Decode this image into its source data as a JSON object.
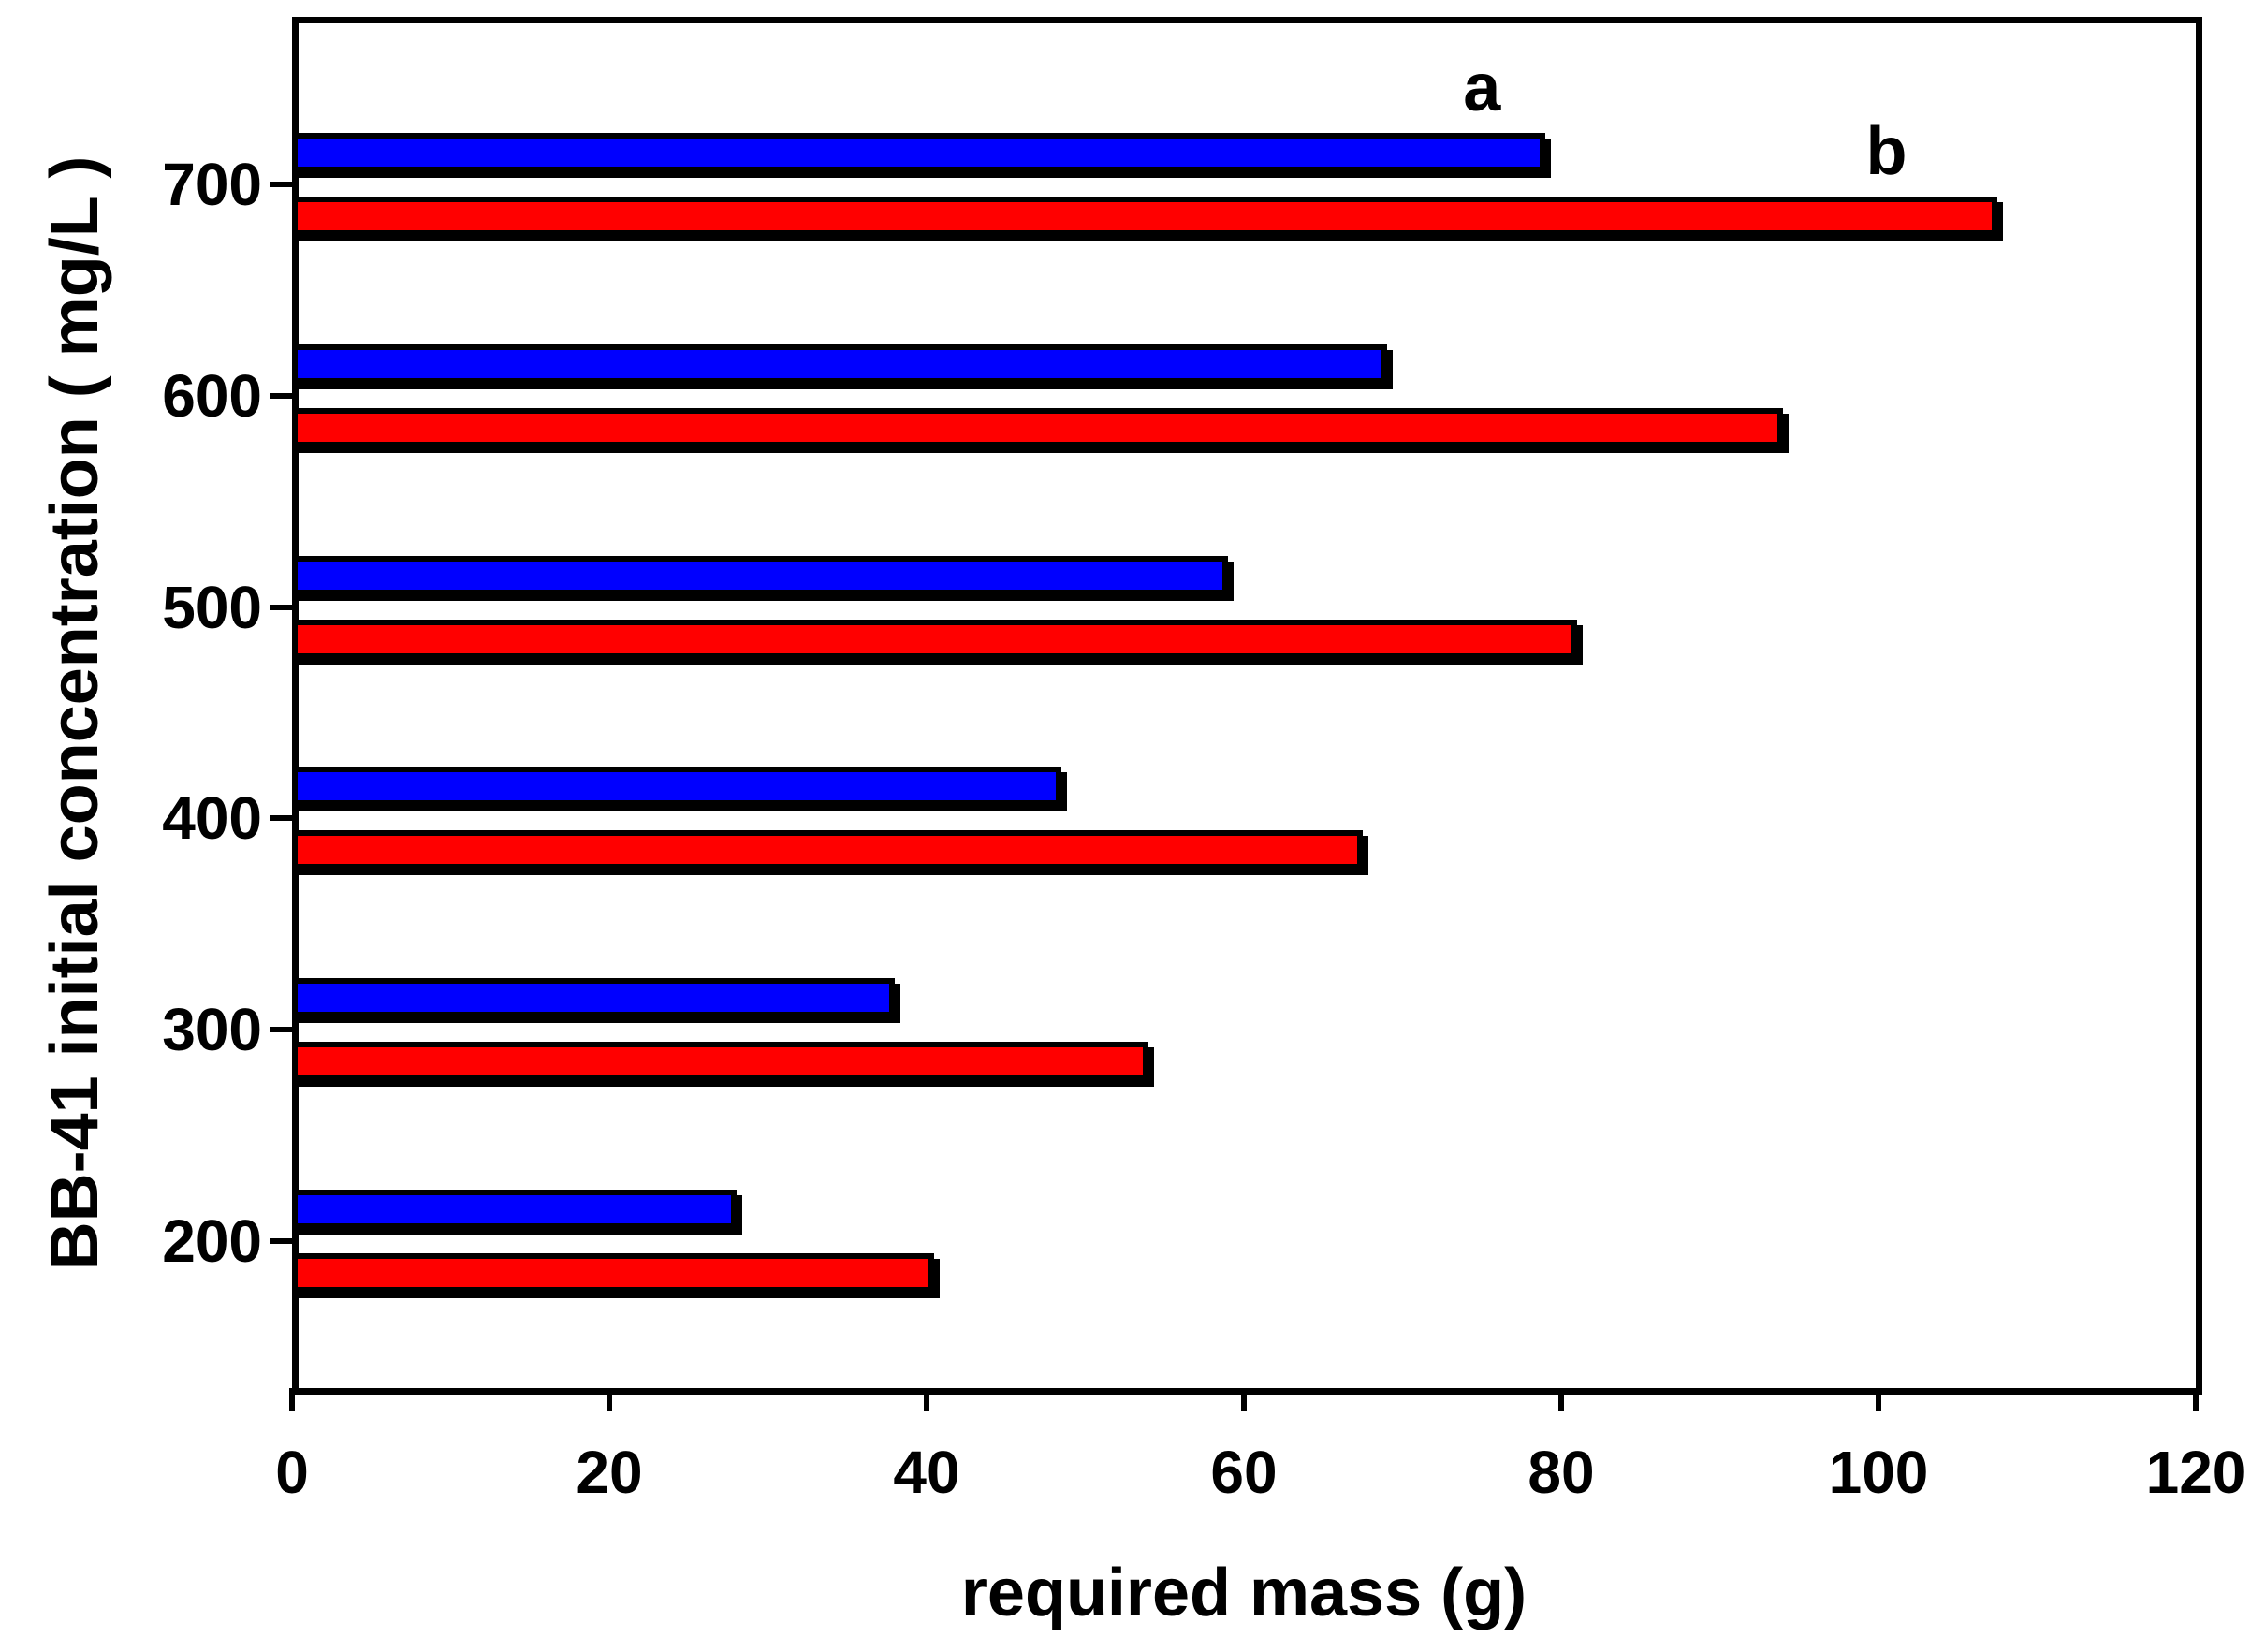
{
  "figure": {
    "background": "#ffffff",
    "text_color": "#000000"
  },
  "chart_data": {
    "type": "bar",
    "orientation": "horizontal",
    "title": "",
    "xlabel": "required mass (g)",
    "ylabel": "BB-41 initial concentration ( mg/L )",
    "xlim": [
      0,
      120
    ],
    "xticks": [
      0,
      20,
      40,
      60,
      80,
      100,
      120
    ],
    "categories": [
      700,
      600,
      500,
      400,
      300,
      200
    ],
    "series": [
      {
        "name": "a",
        "color": "#0000ff",
        "values": [
          79,
          69,
          59,
          48.5,
          38,
          28
        ]
      },
      {
        "name": "b",
        "color": "#ff0000",
        "values": [
          107.5,
          94,
          81,
          67.5,
          54,
          40.5
        ]
      }
    ],
    "bar_outline_color": "#000000",
    "grid": false,
    "legend": "none",
    "annotations": [
      {
        "text": "a",
        "series": "a",
        "category": 700,
        "x_value": 75
      },
      {
        "text": "b",
        "series": "b",
        "category": 700,
        "x_value": 100.5
      }
    ]
  }
}
